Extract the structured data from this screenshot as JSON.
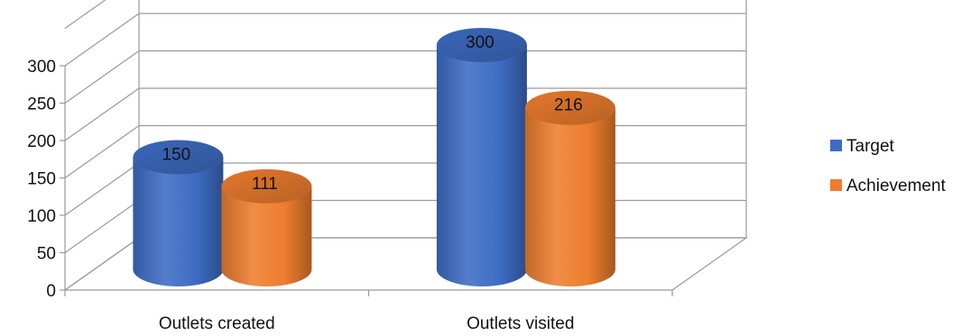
{
  "chart_data": {
    "type": "bar",
    "style": "3d-cylinder",
    "categories": [
      "Outlets created",
      "Outlets visited"
    ],
    "series": [
      {
        "name": "Target",
        "values": [
          150,
          300
        ],
        "color": "#3d6cc4"
      },
      {
        "name": "Achievement",
        "values": [
          111,
          216
        ],
        "color": "#ee7d2e"
      }
    ],
    "ylim": [
      0,
      300
    ],
    "yticks": [
      "0",
      "50",
      "100",
      "150",
      "200",
      "250",
      "300"
    ],
    "grid": true,
    "legend_position": "right"
  }
}
